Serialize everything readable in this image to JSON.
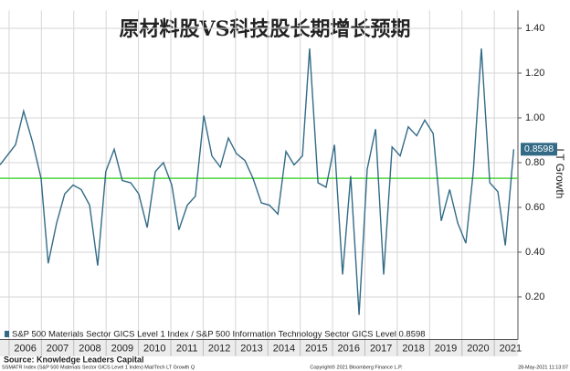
{
  "chart_data": {
    "type": "line",
    "title": "原材料股VS科技股长期增长预期",
    "y_axis_label": "LT Growth",
    "x": [
      2005.72,
      2006.2,
      2006.45,
      2006.73,
      2006.99,
      2007.21,
      2007.47,
      2007.72,
      2007.98,
      2008.23,
      2008.49,
      2008.74,
      2008.99,
      2009.25,
      2009.5,
      2009.76,
      2010.01,
      2010.27,
      2010.52,
      2010.77,
      2011.03,
      2011.25,
      2011.51,
      2011.76,
      2012.02,
      2012.27,
      2012.53,
      2012.78,
      2013.03,
      2013.29,
      2013.54,
      2013.8,
      2014.05,
      2014.31,
      2014.56,
      2014.81,
      2015.07,
      2015.29,
      2015.55,
      2015.8,
      2016.06,
      2016.31,
      2016.56,
      2016.82,
      2017.07,
      2017.33,
      2017.58,
      2017.84,
      2018.09,
      2018.34,
      2018.6,
      2018.85,
      2019.11,
      2019.36,
      2019.62,
      2019.87,
      2020.12,
      2020.35,
      2020.6,
      2020.86,
      2021.11,
      2021.34,
      2021.6
    ],
    "series": [
      {
        "name": "S&P 500 Materials Sector GICS Level 1 Index / S&P 500 Information Technology Sector GICS Level 0.8598",
        "color": "#336b87",
        "values": [
          0.79,
          0.88,
          1.03,
          0.89,
          0.73,
          0.35,
          0.53,
          0.66,
          0.7,
          0.68,
          0.61,
          0.34,
          0.76,
          0.86,
          0.72,
          0.71,
          0.66,
          0.51,
          0.76,
          0.8,
          0.7,
          0.5,
          0.61,
          0.65,
          1.01,
          0.83,
          0.78,
          0.91,
          0.84,
          0.81,
          0.73,
          0.62,
          0.61,
          0.57,
          0.85,
          0.79,
          0.83,
          1.31,
          0.71,
          0.69,
          0.88,
          0.3,
          0.74,
          0.12,
          0.77,
          0.95,
          0.3,
          0.87,
          0.83,
          0.96,
          0.92,
          0.99,
          0.93,
          0.54,
          0.68,
          0.53,
          0.44,
          0.76,
          1.31,
          0.71,
          0.67,
          0.43,
          0.8598
        ]
      }
    ],
    "reference_line": {
      "value": 0.73,
      "color": "#4cd43c"
    },
    "xlim": [
      2005.72,
      2021.73
    ],
    "xticks": [
      2006,
      2007,
      2008,
      2009,
      2010,
      2011,
      2012,
      2013,
      2014,
      2015,
      2016,
      2017,
      2018,
      2019,
      2020,
      2021
    ],
    "ylim": [
      0.01,
      1.48
    ],
    "yticks": [
      {
        "value": 0.2,
        "label": "0.20"
      },
      {
        "value": 0.4,
        "label": "0.40"
      },
      {
        "value": 0.6,
        "label": "0.60"
      },
      {
        "value": 0.8,
        "label": "0.80"
      },
      {
        "value": 1.0,
        "label": "1.00"
      },
      {
        "value": 1.2,
        "label": "1.20"
      },
      {
        "value": 1.4,
        "label": "1.40"
      }
    ],
    "grid": true,
    "source": "Source: Knowledge Leaders Capital",
    "footer": [
      "SSMATR Index (S&P 500 Materials Sector GICS Level 1 Index) Mat/Tech LT Growth Q",
      "Copyright© 2021 Bloomberg Finance L.P.",
      "28-May-2021 11:13:07"
    ]
  }
}
